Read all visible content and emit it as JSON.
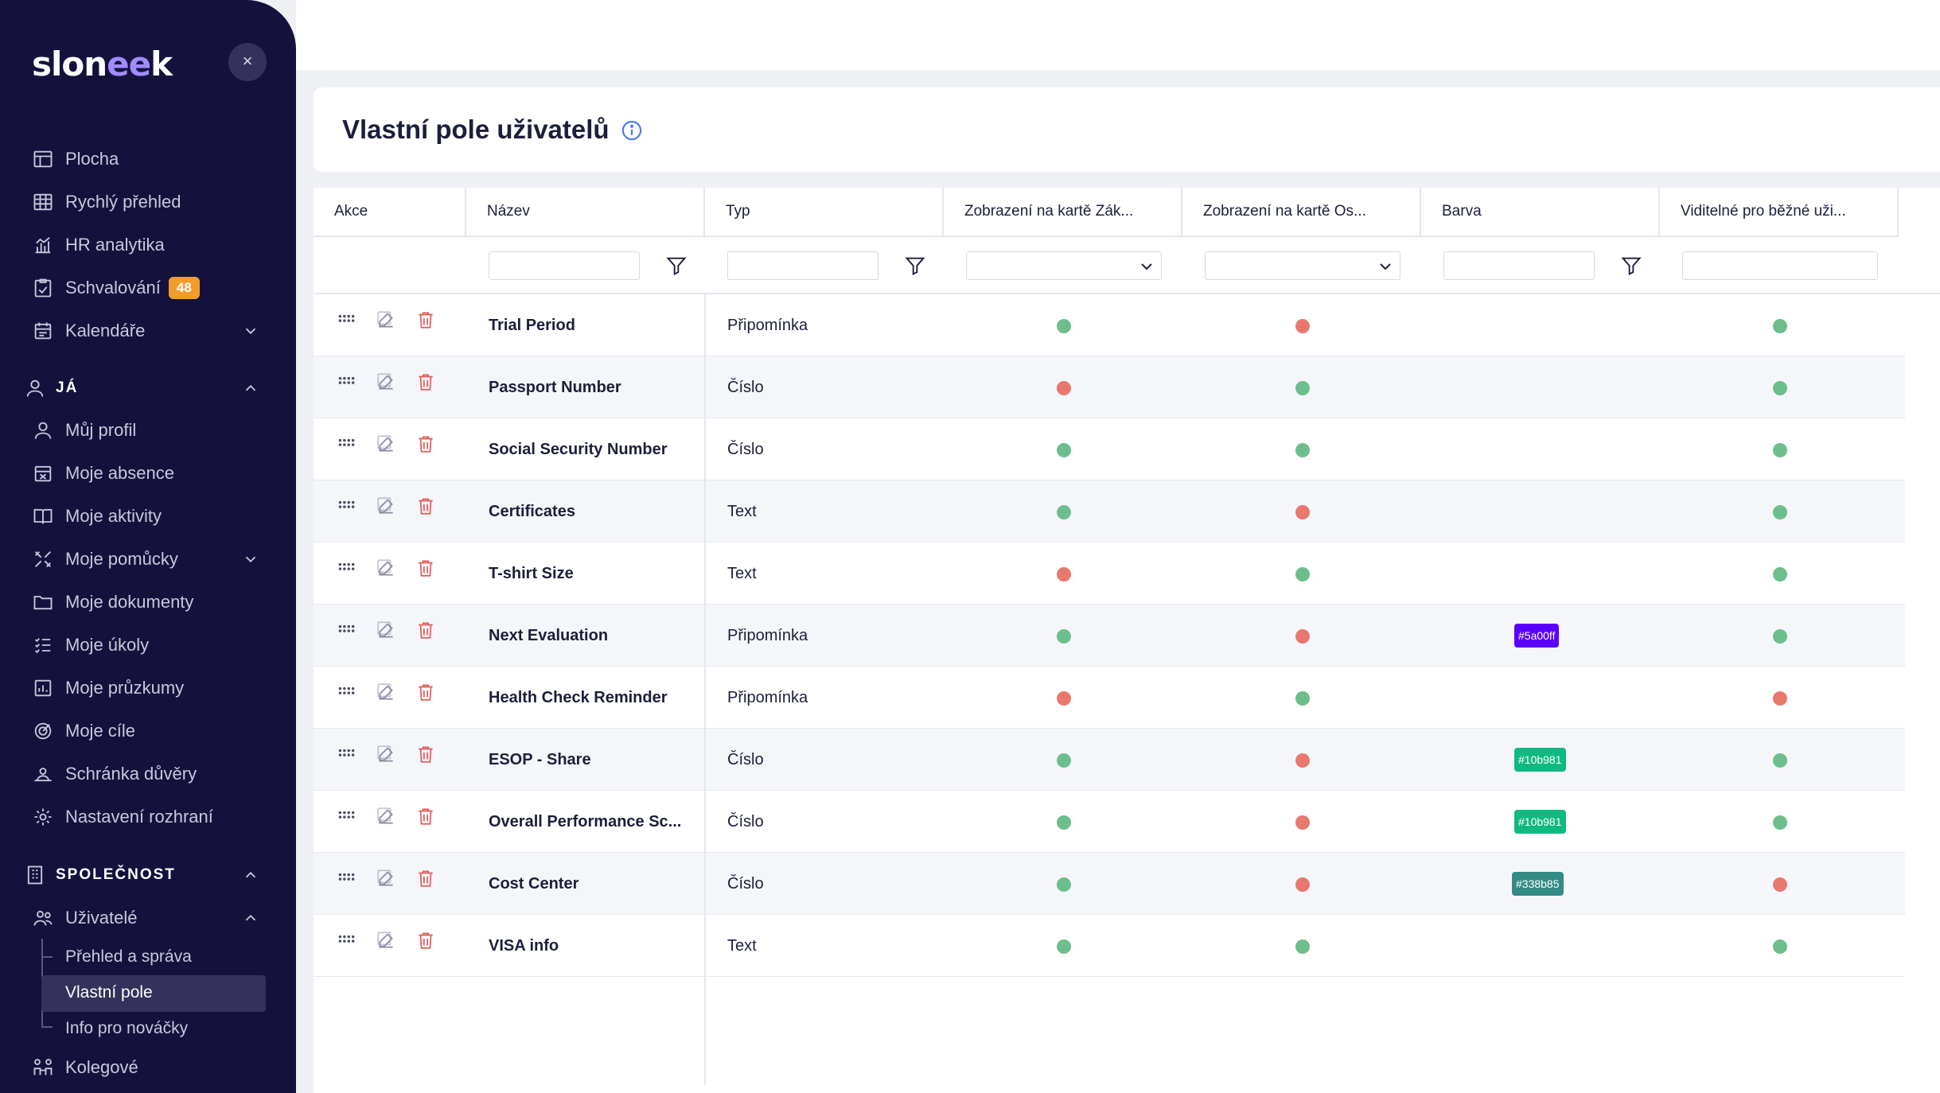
{
  "brand": {
    "logo_main": "slon",
    "logo_accent": "ee",
    "logo_tail": "k"
  },
  "sidebar": {
    "close_glyph": "×",
    "main_items": [
      {
        "label": "Plocha",
        "icon": "layout-icon"
      },
      {
        "label": "Rychlý přehled",
        "icon": "grid-icon"
      },
      {
        "label": "HR analytika",
        "icon": "chart-icon"
      },
      {
        "label": "Schvalování",
        "icon": "approval-icon",
        "badge": "48"
      },
      {
        "label": "Kalendáře",
        "icon": "calendar-icon"
      }
    ],
    "section_me": {
      "title": "JÁ",
      "items": [
        {
          "label": "Můj profil",
          "icon": "user-icon"
        },
        {
          "label": "Moje absence",
          "icon": "absence-icon"
        },
        {
          "label": "Moje aktivity",
          "icon": "book-icon"
        },
        {
          "label": "Moje pomůcky",
          "icon": "tools-icon"
        },
        {
          "label": "Moje dokumenty",
          "icon": "folder-icon"
        },
        {
          "label": "Moje úkoly",
          "icon": "tasks-icon"
        },
        {
          "label": "Moje průzkumy",
          "icon": "survey-icon"
        },
        {
          "label": "Moje cíle",
          "icon": "target-icon"
        },
        {
          "label": "Schránka důvěry",
          "icon": "trust-icon"
        },
        {
          "label": "Nastavení rozhraní",
          "icon": "settings-icon"
        }
      ]
    },
    "section_company": {
      "title": "SPOLEČNOST",
      "users_label": "Uživatelé",
      "sub_items": [
        "Přehled a správa",
        "Vlastní pole",
        "Info pro nováčky"
      ],
      "colleagues_label": "Kolegové"
    }
  },
  "page": {
    "title": "Vlastní pole uživatelů"
  },
  "table": {
    "columns": [
      "Akce",
      "Název",
      "Typ",
      "Zobrazení na kartě Zák...",
      "Zobrazení na kartě Os...",
      "Barva",
      "Viditelné pro běžné uži..."
    ],
    "rows": [
      {
        "name": "Trial Period",
        "type": "Připomínka",
        "card_a": "green",
        "card_b": "red",
        "color": "",
        "visible": "green"
      },
      {
        "name": "Passport Number",
        "type": "Číslo",
        "card_a": "red",
        "card_b": "green",
        "color": "",
        "visible": "green"
      },
      {
        "name": "Social Security Number",
        "type": "Číslo",
        "card_a": "green",
        "card_b": "green",
        "color": "",
        "visible": "green"
      },
      {
        "name": "Certificates",
        "type": "Text",
        "card_a": "green",
        "card_b": "red",
        "color": "",
        "visible": "green"
      },
      {
        "name": "T-shirt Size",
        "type": "Text",
        "card_a": "red",
        "card_b": "green",
        "color": "",
        "visible": "green"
      },
      {
        "name": "Next Evaluation",
        "type": "Připomínka",
        "card_a": "green",
        "card_b": "red",
        "color": "#5a00ff",
        "visible": "green"
      },
      {
        "name": "Health Check Reminder",
        "type": "Připomínka",
        "card_a": "red",
        "card_b": "green",
        "color": "",
        "visible": "red"
      },
      {
        "name": "ESOP - Share",
        "type": "Číslo",
        "card_a": "green",
        "card_b": "red",
        "color": "#10b981",
        "visible": "green"
      },
      {
        "name": "Overall Performance Sc...",
        "type": "Číslo",
        "card_a": "green",
        "card_b": "red",
        "color": "#10b981",
        "visible": "green"
      },
      {
        "name": "Cost Center",
        "type": "Číslo",
        "card_a": "green",
        "card_b": "red",
        "color": "#338b85",
        "visible": "red"
      },
      {
        "name": "VISA info",
        "type": "Text",
        "card_a": "green",
        "card_b": "green",
        "color": "",
        "visible": "green"
      }
    ]
  },
  "colors": {
    "green": "#6cbf8c",
    "red": "#e8786e",
    "sidebar_bg": "#14123d",
    "badge": "#f39b2b"
  }
}
